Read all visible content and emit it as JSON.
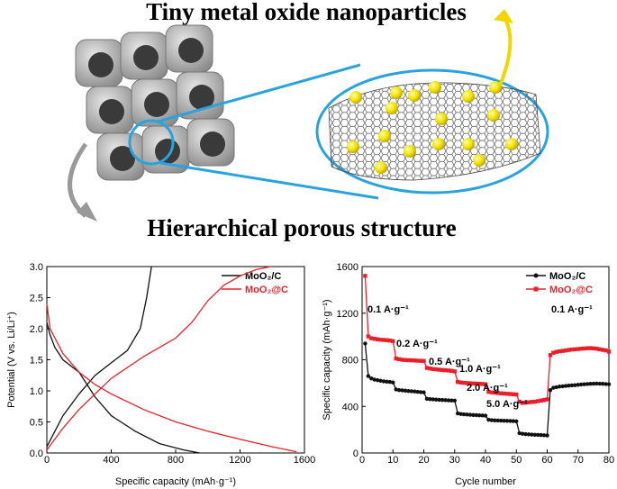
{
  "illustration": {
    "title": "Tiny metal oxide nanoparticles",
    "caption": "Hierarchical porous structure"
  },
  "chart_data": [
    {
      "type": "line",
      "xlabel": "Specific capacity (mAh·g⁻¹)",
      "ylabel": "Potential (V vs. Li/Li⁺)",
      "xlim": [
        0,
        1600
      ],
      "xticks": [
        0,
        400,
        800,
        1200,
        1600
      ],
      "ylim": [
        0,
        3
      ],
      "yticks": [
        {
          "value": 0,
          "label": "0.0"
        },
        0.5,
        {
          "value": 1,
          "label": "1.0"
        },
        1.5,
        {
          "value": 2,
          "label": "2.0"
        },
        2.5,
        {
          "value": 3,
          "label": "3.0"
        }
      ],
      "legend": "upper right",
      "series": [
        {
          "name": "MoO₂/C",
          "color": "#111111",
          "x": [
            0,
            20,
            50,
            100,
            200,
            300,
            400,
            550,
            700,
            850,
            950,
            null,
            0,
            100,
            200,
            300,
            400,
            500,
            580,
            620,
            650
          ],
          "values": [
            2.1,
            1.9,
            1.7,
            1.5,
            1.3,
            0.9,
            0.6,
            0.35,
            0.15,
            0.05,
            0,
            null,
            0.1,
            0.6,
            0.95,
            1.25,
            1.45,
            1.65,
            2.0,
            2.5,
            3.0
          ]
        },
        {
          "name": "MoO₂@C",
          "color": "#e8202a",
          "x": [
            0,
            20,
            100,
            200,
            300,
            400,
            600,
            800,
            1000,
            1200,
            1400,
            1550,
            null,
            0,
            100,
            200,
            300,
            400,
            600,
            800,
            900,
            1000,
            1100,
            1200,
            1300,
            1390
          ],
          "values": [
            2.4,
            2.0,
            1.6,
            1.3,
            1.1,
            0.95,
            0.7,
            0.5,
            0.35,
            0.22,
            0.1,
            0.02,
            null,
            0.05,
            0.4,
            0.7,
            0.95,
            1.2,
            1.55,
            1.85,
            2.1,
            2.45,
            2.7,
            2.85,
            2.95,
            3.0
          ]
        }
      ]
    },
    {
      "type": "line",
      "xlabel": "Cycle number",
      "ylabel": "Specific capacity (mAh·g⁻¹)",
      "xlim": [
        0,
        80
      ],
      "xticks": [
        0,
        10,
        20,
        30,
        40,
        50,
        60,
        70,
        80
      ],
      "ylim": [
        0,
        1600
      ],
      "yticks": [
        0,
        400,
        800,
        1200,
        1600
      ],
      "legend": "upper right",
      "x": [
        1,
        2,
        3,
        4,
        5,
        6,
        7,
        8,
        9,
        10,
        11,
        12,
        13,
        14,
        15,
        16,
        17,
        18,
        19,
        20,
        21,
        22,
        23,
        24,
        25,
        26,
        27,
        28,
        29,
        30,
        31,
        32,
        33,
        34,
        35,
        36,
        37,
        38,
        39,
        40,
        41,
        42,
        43,
        44,
        45,
        46,
        47,
        48,
        49,
        50,
        51,
        52,
        53,
        54,
        55,
        56,
        57,
        58,
        59,
        60,
        61,
        62,
        63,
        64,
        65,
        66,
        67,
        68,
        69,
        70,
        71,
        72,
        73,
        74,
        75,
        76,
        77,
        78,
        79,
        80
      ],
      "annotations": [
        "0.1 A·g⁻¹",
        "0.2 A·g⁻¹",
        "0.5 A·g⁻¹",
        "1.0 A·g⁻¹",
        "2.0 A·g⁻¹",
        "5.0 A·g⁻¹",
        "0.1 A·g⁻¹"
      ],
      "series": [
        {
          "name": "MoO₂/C",
          "color": "#111111",
          "marker": "circle",
          "values": [
            940,
            660,
            640,
            630,
            625,
            620,
            615,
            612,
            610,
            605,
            545,
            540,
            538,
            535,
            532,
            530,
            528,
            525,
            522,
            520,
            465,
            462,
            460,
            458,
            456,
            455,
            454,
            452,
            451,
            450,
            340,
            335,
            332,
            330,
            328,
            326,
            325,
            323,
            322,
            320,
            285,
            282,
            280,
            279,
            278,
            277,
            276,
            275,
            274,
            272,
            170,
            165,
            162,
            160,
            158,
            156,
            155,
            154,
            152,
            150,
            540,
            560,
            565,
            570,
            572,
            575,
            578,
            580,
            582,
            585,
            588,
            590,
            592,
            594,
            595,
            596,
            595,
            594,
            592,
            590
          ]
        },
        {
          "name": "MoO₂@C",
          "color": "#e8202a",
          "marker": "square",
          "values": [
            1520,
            1000,
            985,
            980,
            975,
            972,
            970,
            968,
            965,
            960,
            810,
            805,
            800,
            798,
            796,
            795,
            794,
            792,
            791,
            790,
            730,
            725,
            720,
            718,
            715,
            712,
            710,
            708,
            705,
            700,
            610,
            605,
            602,
            600,
            598,
            596,
            595,
            594,
            592,
            590,
            525,
            520,
            518,
            515,
            512,
            510,
            508,
            506,
            504,
            502,
            440,
            430,
            432,
            435,
            438,
            440,
            445,
            450,
            455,
            460,
            840,
            860,
            868,
            872,
            876,
            880,
            884,
            888,
            890,
            892,
            895,
            897,
            899,
            900,
            898,
            895,
            890,
            885,
            880,
            870
          ]
        }
      ]
    }
  ]
}
